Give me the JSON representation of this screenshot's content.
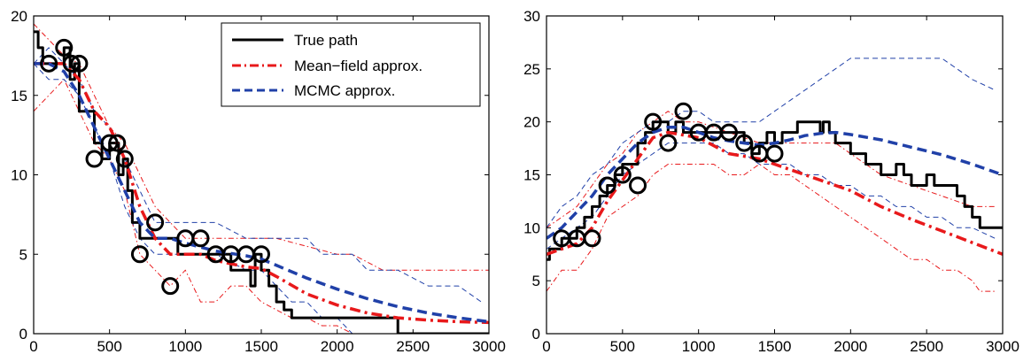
{
  "chart_data": [
    {
      "type": "line",
      "xlim": [
        0,
        3000
      ],
      "ylim": [
        0,
        20
      ],
      "xticks": [
        0,
        500,
        1000,
        1500,
        2000,
        2500,
        3000
      ],
      "yticks": [
        0,
        5,
        10,
        15,
        20
      ],
      "grid": false,
      "legend": {
        "placement": "top-right",
        "entries": [
          {
            "label": "True path",
            "color": "#000000",
            "style": "solid"
          },
          {
            "label": "Mean−field approx.",
            "color": "#e8191b",
            "style": "dashdot"
          },
          {
            "label": "MCMC approx.",
            "color": "#2040a8",
            "style": "dashed"
          }
        ]
      },
      "true_path": {
        "x": [
          0,
          30,
          30,
          60,
          60,
          200,
          200,
          240,
          240,
          270,
          270,
          300,
          300,
          400,
          400,
          450,
          450,
          500,
          500,
          560,
          560,
          590,
          590,
          620,
          620,
          650,
          650,
          700,
          700,
          800,
          800,
          950,
          950,
          1300,
          1300,
          1400,
          1400,
          1430,
          1430,
          1460,
          1460,
          1500,
          1500,
          1550,
          1550,
          1600,
          1600,
          1650,
          1650,
          1700,
          1700,
          1850,
          1850,
          2400,
          2400,
          3000
        ],
        "y": [
          19,
          19,
          18,
          18,
          17,
          17,
          18,
          18,
          16,
          16,
          17,
          17,
          14,
          14,
          12,
          12,
          11,
          11,
          12,
          12,
          10,
          10,
          11,
          11,
          9,
          9,
          7,
          7,
          6,
          6,
          6,
          6,
          5,
          5,
          4,
          4,
          4,
          4,
          3,
          3,
          5,
          5,
          4,
          4,
          3,
          3,
          2,
          2,
          1.5,
          1.5,
          1,
          1,
          1,
          1,
          0,
          0
        ]
      },
      "observations": {
        "x": [
          100,
          200,
          250,
          300,
          400,
          500,
          550,
          600,
          700,
          800,
          900,
          1000,
          1100,
          1200,
          1300,
          1400,
          1500
        ],
        "y": [
          17,
          18,
          17,
          17,
          11,
          12,
          12,
          11,
          5,
          7,
          3,
          6,
          6,
          5,
          5,
          5,
          5
        ]
      },
      "mean_field": {
        "mean": {
          "x": [
            0,
            100,
            200,
            300,
            400,
            500,
            600,
            700,
            800,
            900,
            1000,
            1100,
            1200,
            1300,
            1400,
            1500,
            1600,
            1800,
            2000,
            2200,
            2400,
            2600,
            2800,
            3000
          ],
          "y": [
            17,
            17,
            17,
            16,
            14,
            13,
            11,
            8,
            6,
            5,
            5,
            5,
            4.6,
            4.4,
            4.2,
            4.1,
            3.6,
            2.5,
            1.8,
            1.3,
            1.0,
            0.85,
            0.75,
            0.7
          ]
        },
        "upper": {
          "x": [
            0,
            100,
            200,
            300,
            400,
            500,
            600,
            700,
            800,
            900,
            1000,
            1200,
            1400,
            1600,
            1800,
            2000,
            2100,
            2200,
            2300,
            2400,
            2600,
            2800,
            3000
          ],
          "y": [
            19.5,
            18.5,
            17.5,
            17,
            15,
            13,
            12,
            10,
            8,
            7,
            6,
            6,
            6,
            6,
            5.5,
            5,
            5,
            4.5,
            4,
            4,
            4,
            4,
            4
          ]
        },
        "lower": {
          "x": [
            0,
            100,
            200,
            300,
            400,
            500,
            600,
            650,
            700,
            800,
            900,
            1000,
            1100,
            1200,
            1300,
            1400,
            1500,
            1600,
            1700,
            1800,
            1900,
            2000,
            2100
          ],
          "y": [
            14,
            15,
            16,
            14,
            12,
            11,
            9,
            7,
            5,
            4,
            3,
            4,
            2,
            2,
            3,
            3,
            2,
            1.5,
            1,
            1,
            0.5,
            0.5,
            0
          ]
        }
      },
      "mcmc": {
        "mean": {
          "x": [
            0,
            100,
            200,
            300,
            400,
            500,
            600,
            700,
            800,
            900,
            1000,
            1200,
            1400,
            1500,
            1600,
            1800,
            2000,
            2200,
            2400,
            2600,
            2800,
            3000
          ],
          "y": [
            17,
            17,
            16.5,
            15,
            13,
            11,
            9,
            7,
            6,
            6,
            5.7,
            5.2,
            4.9,
            4.7,
            4.3,
            3.5,
            2.8,
            2.2,
            1.7,
            1.3,
            1.0,
            0.75
          ]
        },
        "upper": {
          "x": [
            0,
            100,
            200,
            300,
            400,
            500,
            600,
            700,
            800,
            1000,
            1200,
            1400,
            1600,
            1800,
            1900,
            2000,
            2100,
            2200,
            2400,
            2600,
            2800,
            2950
          ],
          "y": [
            17,
            18,
            17,
            16,
            14,
            13,
            11,
            9,
            7,
            7,
            7,
            6,
            6,
            6,
            5,
            5,
            5,
            4,
            4,
            3,
            3,
            2
          ]
        },
        "lower": {
          "x": [
            0,
            100,
            200,
            300,
            400,
            500,
            600,
            700,
            800,
            1000,
            1200,
            1400,
            1500,
            1600,
            1700,
            1800,
            1900,
            2000,
            2100
          ],
          "y": [
            17,
            16,
            16,
            15,
            13,
            11,
            8,
            6,
            5,
            5,
            5,
            4,
            4,
            3,
            2,
            2,
            1,
            1,
            0
          ]
        }
      }
    },
    {
      "type": "line",
      "xlim": [
        0,
        3000
      ],
      "ylim": [
        0,
        30
      ],
      "xticks": [
        0,
        500,
        1000,
        1500,
        2000,
        2500,
        3000
      ],
      "yticks": [
        0,
        5,
        10,
        15,
        20,
        25,
        30
      ],
      "grid": false,
      "true_path": {
        "x": [
          0,
          20,
          20,
          100,
          100,
          200,
          200,
          250,
          250,
          300,
          300,
          350,
          350,
          400,
          400,
          450,
          450,
          500,
          500,
          600,
          600,
          650,
          650,
          700,
          700,
          800,
          800,
          850,
          850,
          900,
          900,
          1000,
          1000,
          1300,
          1300,
          1350,
          1350,
          1400,
          1400,
          1450,
          1450,
          1500,
          1500,
          1550,
          1550,
          1600,
          1600,
          1650,
          1650,
          1800,
          1800,
          1820,
          1820,
          1860,
          1860,
          1900,
          1900,
          2000,
          2000,
          2100,
          2100,
          2200,
          2200,
          2300,
          2300,
          2350,
          2350,
          2400,
          2400,
          2500,
          2500,
          2550,
          2550,
          2700,
          2700,
          2750,
          2750,
          2800,
          2800,
          2850,
          2850,
          2900,
          2900,
          3000
        ],
        "y": [
          7,
          7,
          8,
          8,
          9,
          9,
          10,
          10,
          11,
          11,
          12,
          12,
          13,
          13,
          14,
          14,
          15,
          15,
          16,
          16,
          18,
          18,
          19,
          19,
          20,
          20,
          19,
          19,
          20,
          20,
          19,
          19,
          19,
          19,
          18,
          18,
          17,
          17,
          18,
          18,
          19,
          19,
          18,
          18,
          19,
          19,
          19,
          19,
          20,
          20,
          19,
          19,
          20,
          20,
          19,
          19,
          18,
          18,
          17,
          17,
          16,
          16,
          15,
          15,
          16,
          16,
          15,
          15,
          14,
          14,
          15,
          15,
          14,
          14,
          13,
          13,
          12,
          12,
          11,
          11,
          10,
          10,
          10,
          10
        ]
      },
      "observations": {
        "x": [
          100,
          200,
          300,
          400,
          500,
          600,
          700,
          800,
          900,
          1000,
          1100,
          1200,
          1300,
          1400,
          1500
        ],
        "y": [
          9,
          9,
          9,
          14,
          15,
          14,
          20,
          18,
          21,
          19,
          19,
          19,
          18,
          17,
          17
        ]
      },
      "mean_field": {
        "mean": {
          "x": [
            0,
            100,
            200,
            300,
            400,
            500,
            600,
            700,
            800,
            1000,
            1200,
            1400,
            1500,
            1600,
            1800,
            2000,
            2200,
            2400,
            2600,
            2800,
            3000
          ],
          "y": [
            7.5,
            8,
            8.5,
            10,
            12.5,
            14.5,
            16.5,
            18.5,
            19,
            18.5,
            17,
            16.5,
            16,
            15.5,
            14.5,
            13.5,
            12,
            10.8,
            9.7,
            8.6,
            7.5
          ]
        },
        "upper": {
          "x": [
            0,
            100,
            200,
            300,
            400,
            500,
            600,
            700,
            800,
            900,
            1000,
            1200,
            1400,
            1600,
            1800,
            1900,
            2000,
            2200,
            2400,
            2600,
            2800,
            2950
          ],
          "y": [
            10,
            11,
            12,
            14,
            16,
            17,
            19,
            20,
            21,
            20,
            20,
            19,
            18,
            18,
            18,
            18,
            17,
            15,
            14,
            13,
            12,
            12
          ]
        },
        "lower": {
          "x": [
            0,
            50,
            100,
            200,
            300,
            400,
            500,
            600,
            700,
            800,
            900,
            1000,
            1100,
            1200,
            1300,
            1400,
            1500,
            1600,
            1700,
            1800,
            1900,
            2000,
            2100,
            2200,
            2300,
            2400,
            2500,
            2600,
            2700,
            2800,
            2850,
            2950
          ],
          "y": [
            4,
            5,
            6,
            6,
            8,
            11,
            12,
            13,
            15,
            16,
            16,
            16,
            16,
            15,
            15,
            16,
            15,
            15,
            14,
            13,
            12,
            11,
            10,
            9,
            8,
            7,
            7,
            6,
            6,
            5,
            4,
            4
          ]
        }
      },
      "mcmc": {
        "mean": {
          "x": [
            0,
            100,
            200,
            300,
            400,
            500,
            600,
            700,
            800,
            900,
            1000,
            1100,
            1200,
            1300,
            1400,
            1500,
            1600,
            1700,
            1800,
            1900,
            2000,
            2200,
            2400,
            2600,
            2800,
            3000
          ],
          "y": [
            9,
            10,
            11.5,
            13,
            15,
            16.5,
            18,
            19,
            19.5,
            19.5,
            19,
            18.5,
            18.2,
            18,
            17.8,
            18,
            18.3,
            18.7,
            18.9,
            19,
            18.8,
            18.3,
            17.6,
            16.9,
            16,
            15
          ]
        },
        "upper": {
          "x": [
            0,
            100,
            200,
            300,
            400,
            500,
            600,
            700,
            800,
            900,
            1000,
            1100,
            1200,
            1300,
            1400,
            1500,
            1600,
            1700,
            1800,
            1900,
            2000,
            2100,
            2200,
            2600,
            2700,
            2800,
            2950
          ],
          "y": [
            10,
            12,
            13,
            15,
            16,
            18,
            19,
            20,
            20,
            21,
            21,
            20,
            20,
            20,
            20,
            21,
            22,
            23,
            24,
            25,
            26,
            26,
            26,
            26,
            25,
            24,
            23
          ]
        },
        "lower": {
          "x": [
            0,
            100,
            200,
            300,
            400,
            500,
            600,
            700,
            800,
            900,
            1000,
            1100,
            1200,
            1300,
            1400,
            1500,
            1600,
            1700,
            1800,
            1900,
            2000,
            2100,
            2200,
            2300,
            2400,
            2500,
            2600,
            2700,
            2800,
            2950
          ],
          "y": [
            8,
            9,
            10,
            11,
            13,
            15,
            16,
            17,
            18,
            18,
            18,
            18,
            17,
            17,
            16,
            16,
            16,
            15,
            15,
            14,
            14,
            13,
            13,
            12,
            12,
            11,
            11,
            10,
            10,
            9
          ]
        }
      }
    }
  ]
}
